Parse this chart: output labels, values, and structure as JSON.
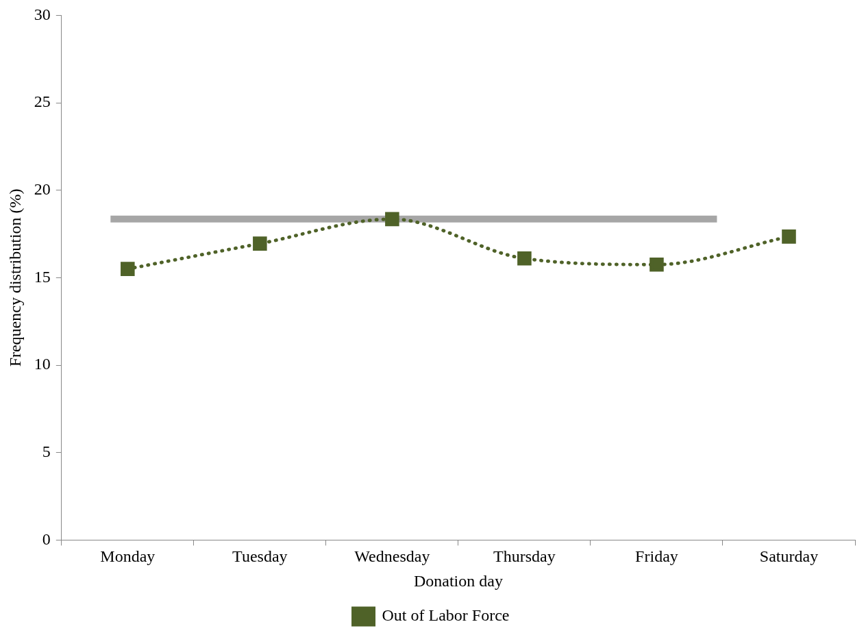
{
  "chart_data": {
    "type": "line",
    "xlabel": "Donation day",
    "ylabel": "Frequency distribution (%)",
    "categories": [
      "Monday",
      "Tuesday",
      "Wednesday",
      "Thursday",
      "Friday",
      "Saturday"
    ],
    "series": [
      {
        "name": "Out of Labor Force",
        "color": "#4f6228",
        "values": [
          15.5,
          16.95,
          18.35,
          16.1,
          15.75,
          17.35
        ]
      }
    ],
    "ylim": [
      0,
      30
    ],
    "yticks": [
      0,
      5,
      10,
      15,
      20,
      25,
      30
    ],
    "ref_lines": [
      {
        "axis": "y",
        "value": 18.35,
        "color": "#a6a6a6"
      }
    ],
    "grid": false,
    "legend": "bottom",
    "marker": "square",
    "line_style": "dotted"
  }
}
